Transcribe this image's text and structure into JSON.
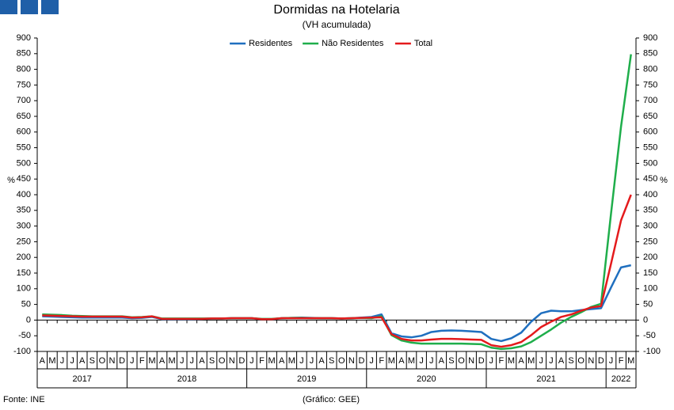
{
  "chart_data": {
    "type": "line",
    "title": "Dormidas na Hotelaria",
    "subtitle": "(VH acumulada)",
    "source": "Fonte: INE",
    "note": "(Gráfico: GEE)",
    "ylabel": "%",
    "y2label": "%",
    "categories": [
      "A",
      "M",
      "J",
      "J",
      "A",
      "S",
      "O",
      "N",
      "D",
      "J",
      "F",
      "M",
      "A",
      "M",
      "J",
      "J",
      "A",
      "S",
      "O",
      "N",
      "D",
      "J",
      "F",
      "M",
      "A",
      "M",
      "J",
      "J",
      "A",
      "S",
      "O",
      "N",
      "D",
      "J",
      "F",
      "M",
      "A",
      "M",
      "J",
      "J",
      "A",
      "S",
      "O",
      "N",
      "D",
      "J",
      "F",
      "M",
      "A",
      "M",
      "J",
      "J",
      "A",
      "S",
      "O",
      "N",
      "D",
      "J",
      "F",
      "M"
    ],
    "category_years": [
      "2017",
      "2017",
      "2017",
      "2017",
      "2017",
      "2017",
      "2017",
      "2017",
      "2017",
      "2018",
      "2018",
      "2018",
      "2018",
      "2018",
      "2018",
      "2018",
      "2018",
      "2018",
      "2018",
      "2018",
      "2018",
      "2019",
      "2019",
      "2019",
      "2019",
      "2019",
      "2019",
      "2019",
      "2019",
      "2019",
      "2019",
      "2019",
      "2019",
      "2020",
      "2020",
      "2020",
      "2020",
      "2020",
      "2020",
      "2020",
      "2020",
      "2020",
      "2020",
      "2020",
      "2020",
      "2021",
      "2021",
      "2021",
      "2021",
      "2021",
      "2021",
      "2021",
      "2021",
      "2021",
      "2021",
      "2021",
      "2021",
      "2022",
      "2022",
      "2022"
    ],
    "series": [
      {
        "name": "Residentes",
        "color": "#1f6fbf",
        "values": [
          12,
          11,
          10,
          9,
          8,
          8,
          8,
          8,
          8,
          6,
          7,
          10,
          3,
          3,
          3,
          3,
          4,
          5,
          5,
          6,
          6,
          6,
          3,
          3,
          6,
          7,
          8,
          7,
          6,
          6,
          5,
          6,
          8,
          10,
          18,
          -42,
          -52,
          -55,
          -50,
          -38,
          -34,
          -33,
          -34,
          -36,
          -38,
          -60,
          -67,
          -58,
          -40,
          -5,
          22,
          30,
          28,
          28,
          32,
          35,
          38,
          104,
          168,
          175
        ]
      },
      {
        "name": "Não Residentes",
        "color": "#1fae4b",
        "values": [
          18,
          17,
          16,
          14,
          13,
          12,
          12,
          12,
          12,
          9,
          10,
          12,
          5,
          5,
          5,
          5,
          5,
          5,
          5,
          6,
          6,
          6,
          4,
          4,
          6,
          7,
          7,
          6,
          6,
          6,
          5,
          6,
          7,
          6,
          12,
          -48,
          -65,
          -72,
          -75,
          -75,
          -75,
          -75,
          -75,
          -76,
          -77,
          -88,
          -92,
          -90,
          -84,
          -70,
          -50,
          -30,
          -8,
          10,
          25,
          42,
          52,
          340,
          617,
          848
        ]
      },
      {
        "name": "Total",
        "color": "#e41a1c",
        "values": [
          15,
          14,
          13,
          12,
          11,
          11,
          11,
          11,
          11,
          8,
          9,
          12,
          4,
          4,
          4,
          4,
          4,
          5,
          5,
          6,
          6,
          6,
          3,
          3,
          6,
          6,
          6,
          6,
          6,
          6,
          5,
          6,
          7,
          8,
          9,
          -45,
          -60,
          -65,
          -65,
          -62,
          -60,
          -60,
          -61,
          -62,
          -63,
          -80,
          -85,
          -80,
          -70,
          -48,
          -22,
          -5,
          10,
          18,
          30,
          40,
          45,
          180,
          318,
          400
        ]
      }
    ],
    "ylim": [
      -100,
      900
    ],
    "yticks": [
      -100,
      -50,
      0,
      50,
      100,
      150,
      200,
      250,
      300,
      350,
      400,
      450,
      500,
      550,
      600,
      650,
      700,
      750,
      800,
      850,
      900
    ],
    "y2lim": [
      -100,
      900
    ],
    "y2ticks": [
      -100,
      -50,
      0,
      50,
      100,
      150,
      200,
      250,
      300,
      350,
      400,
      450,
      500,
      550,
      600,
      650,
      700,
      750,
      800,
      850,
      900
    ],
    "legend": "top"
  }
}
